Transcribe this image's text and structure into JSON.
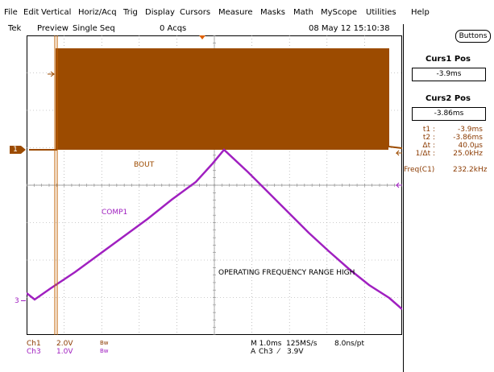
{
  "menu": {
    "items": [
      "File",
      "Edit",
      "Vertical",
      "Horiz/Acq",
      "Trig",
      "Display",
      "Cursors",
      "Measure",
      "Masks",
      "Math",
      "MyScope",
      "Utilities",
      "Help"
    ]
  },
  "status": {
    "brand": "Tek",
    "mode": "Preview",
    "seq": "Single Seq",
    "acqs": "0 Acqs",
    "datetime": "08 May 12 15:10:38"
  },
  "buttons_label": "Buttons",
  "cursors": {
    "curs1_title": "Curs1 Pos",
    "curs1_value": "-3.9ms",
    "curs2_title": "Curs2 Pos",
    "curs2_value": "-3.86ms",
    "readouts": [
      {
        "label": "t1 :",
        "value": "-3.9ms"
      },
      {
        "label": "t2 :",
        "value": "-3.86ms"
      },
      {
        "label": "Δt :",
        "value": "40.0µs"
      },
      {
        "label": "1/Δt :",
        "value": "25.0kHz"
      }
    ],
    "freq_label": "Freq(C1)",
    "freq_value": "232.2kHz"
  },
  "traces": {
    "ch1_marker": "1",
    "ch3_marker": "3",
    "bout_label": "BOUT",
    "comp1_label": "COMP1",
    "annotation": "OPERATING FREQUENCY RANGE HIGH",
    "ch1_color": "#a04a00",
    "ch3_color": "#a020c0",
    "cursor_color": "#c06000"
  },
  "bottom": {
    "ch1": "Ch1",
    "ch1_scale": "2.0V",
    "ch1_bw": "Bw",
    "ch3": "Ch3",
    "ch3_scale": "1.0V",
    "ch3_bw": "Bw",
    "timebase": "M 1.0ms",
    "samplerate": "125MS/s",
    "ptres": "8.0ns/pt",
    "trigger_prefix": "A",
    "trigger_source": "Ch3",
    "trigger_slope": "⁄",
    "trigger_level": "3.9V"
  }
}
